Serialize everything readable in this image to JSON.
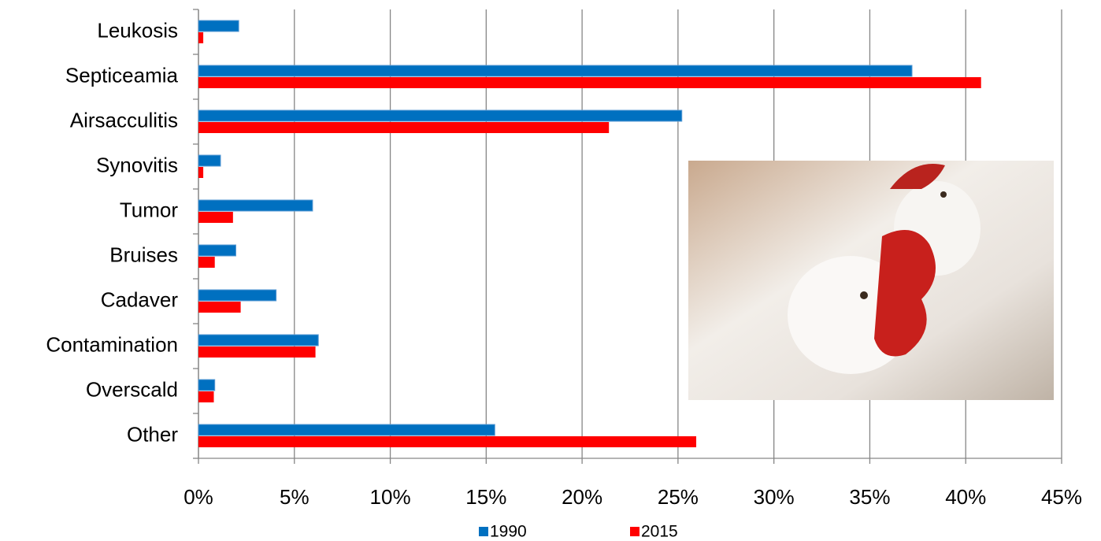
{
  "chart_data": {
    "type": "hbar",
    "categories": [
      "Leukosis",
      "Septiceamia",
      "Airsacculitis",
      "Synovitis",
      "Tumor",
      "Bruises",
      "Cadaver",
      "Contamination",
      "Overscald",
      "Other"
    ],
    "series": [
      {
        "name": "1990",
        "color": "#0070c0",
        "values": [
          2.1,
          37.2,
          25.2,
          1.15,
          5.95,
          1.95,
          4.05,
          6.25,
          0.85,
          15.45
        ]
      },
      {
        "name": "2015",
        "color": "#ff0000",
        "values": [
          0.25,
          40.8,
          21.4,
          0.25,
          1.8,
          0.85,
          2.2,
          6.1,
          0.8,
          25.95
        ]
      }
    ],
    "xlim": [
      0,
      45
    ],
    "xticks": [
      {
        "value": 0,
        "label": "0%"
      },
      {
        "value": 5,
        "label": "5%"
      },
      {
        "value": 10,
        "label": "10%"
      },
      {
        "value": 15,
        "label": "15%"
      },
      {
        "value": 20,
        "label": "20%"
      },
      {
        "value": 25,
        "label": "25%"
      },
      {
        "value": 30,
        "label": "30%"
      },
      {
        "value": 35,
        "label": "35%"
      },
      {
        "value": 40,
        "label": "40%"
      },
      {
        "value": 45,
        "label": "45%"
      }
    ],
    "grid": true
  }
}
